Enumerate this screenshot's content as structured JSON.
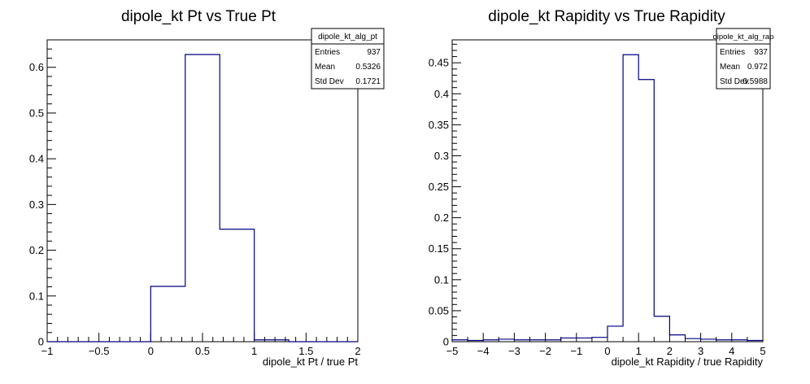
{
  "chart_data": [
    {
      "type": "histogram",
      "title": "dipole_kt Pt vs True Pt",
      "xlabel": "dipole_kt Pt / true Pt",
      "ylabel": "",
      "xlim": [
        -1,
        2
      ],
      "ylim": [
        0,
        0.66
      ],
      "x_ticks": [
        -1,
        -0.5,
        0,
        0.5,
        1,
        1.5,
        2
      ],
      "x_tick_labels": [
        "−1",
        "−0.5",
        "0",
        "0.5",
        "1",
        "1.5",
        "2"
      ],
      "y_ticks": [
        0,
        0.1,
        0.2,
        0.3,
        0.4,
        0.5,
        0.6
      ],
      "y_tick_labels": [
        "0",
        "0.1",
        "0.2",
        "0.3",
        "0.4",
        "0.5",
        "0.6"
      ],
      "bin_edges": [
        -1,
        -0.6667,
        -0.3333,
        0,
        0.3333,
        0.6667,
        1,
        1.3333,
        1.6667,
        2
      ],
      "values": [
        0,
        0,
        0,
        0.121,
        0.628,
        0.246,
        0.004,
        0,
        0
      ],
      "grid": false,
      "line_color": "#000080",
      "stats": {
        "name": "dipole_kt_alg_pt",
        "rows": [
          {
            "label": "Entries",
            "value": "937"
          },
          {
            "label": "Mean",
            "value": "0.5326"
          },
          {
            "label": "Std Dev",
            "value": "0.1721"
          }
        ]
      }
    },
    {
      "type": "histogram",
      "title": "dipole_kt Rapidity vs True Rapidity",
      "xlabel": "dipole_kt Rapidity / true Rapidity",
      "ylabel": "",
      "xlim": [
        -5,
        5
      ],
      "ylim": [
        0,
        0.487
      ],
      "x_ticks": [
        -5,
        -4,
        -3,
        -2,
        -1,
        0,
        1,
        2,
        3,
        4,
        5
      ],
      "x_tick_labels": [
        "−5",
        "−4",
        "−3",
        "−2",
        "−1",
        "0",
        "1",
        "2",
        "3",
        "4",
        "5"
      ],
      "y_ticks": [
        0,
        0.05,
        0.1,
        0.15,
        0.2,
        0.25,
        0.3,
        0.35,
        0.4,
        0.45
      ],
      "y_tick_labels": [
        "0",
        "0.05",
        "0.1",
        "0.15",
        "0.2",
        "0.25",
        "0.3",
        "0.35",
        "0.4",
        "0.45"
      ],
      "bin_edges": [
        -5,
        -4.5,
        -4,
        -3.5,
        -3,
        -2.5,
        -2,
        -1.5,
        -1,
        -0.5,
        0,
        0.5,
        1,
        1.5,
        2,
        2.5,
        3,
        3.5,
        4,
        4.5,
        5
      ],
      "values": [
        0.003,
        0.002,
        0.003,
        0.004,
        0.003,
        0.003,
        0.003,
        0.006,
        0.006,
        0.007,
        0.025,
        0.463,
        0.423,
        0.041,
        0.011,
        0.005,
        0.004,
        0.003,
        0.003,
        0.002
      ],
      "grid": false,
      "line_color": "#000080",
      "stats": {
        "name": "dipole_kt_alg_rap",
        "rows": [
          {
            "label": "Entries",
            "value": "937"
          },
          {
            "label": "Mean",
            "value": "0.972"
          },
          {
            "label": "Std Dev",
            "value": "0.5988"
          }
        ]
      }
    }
  ]
}
